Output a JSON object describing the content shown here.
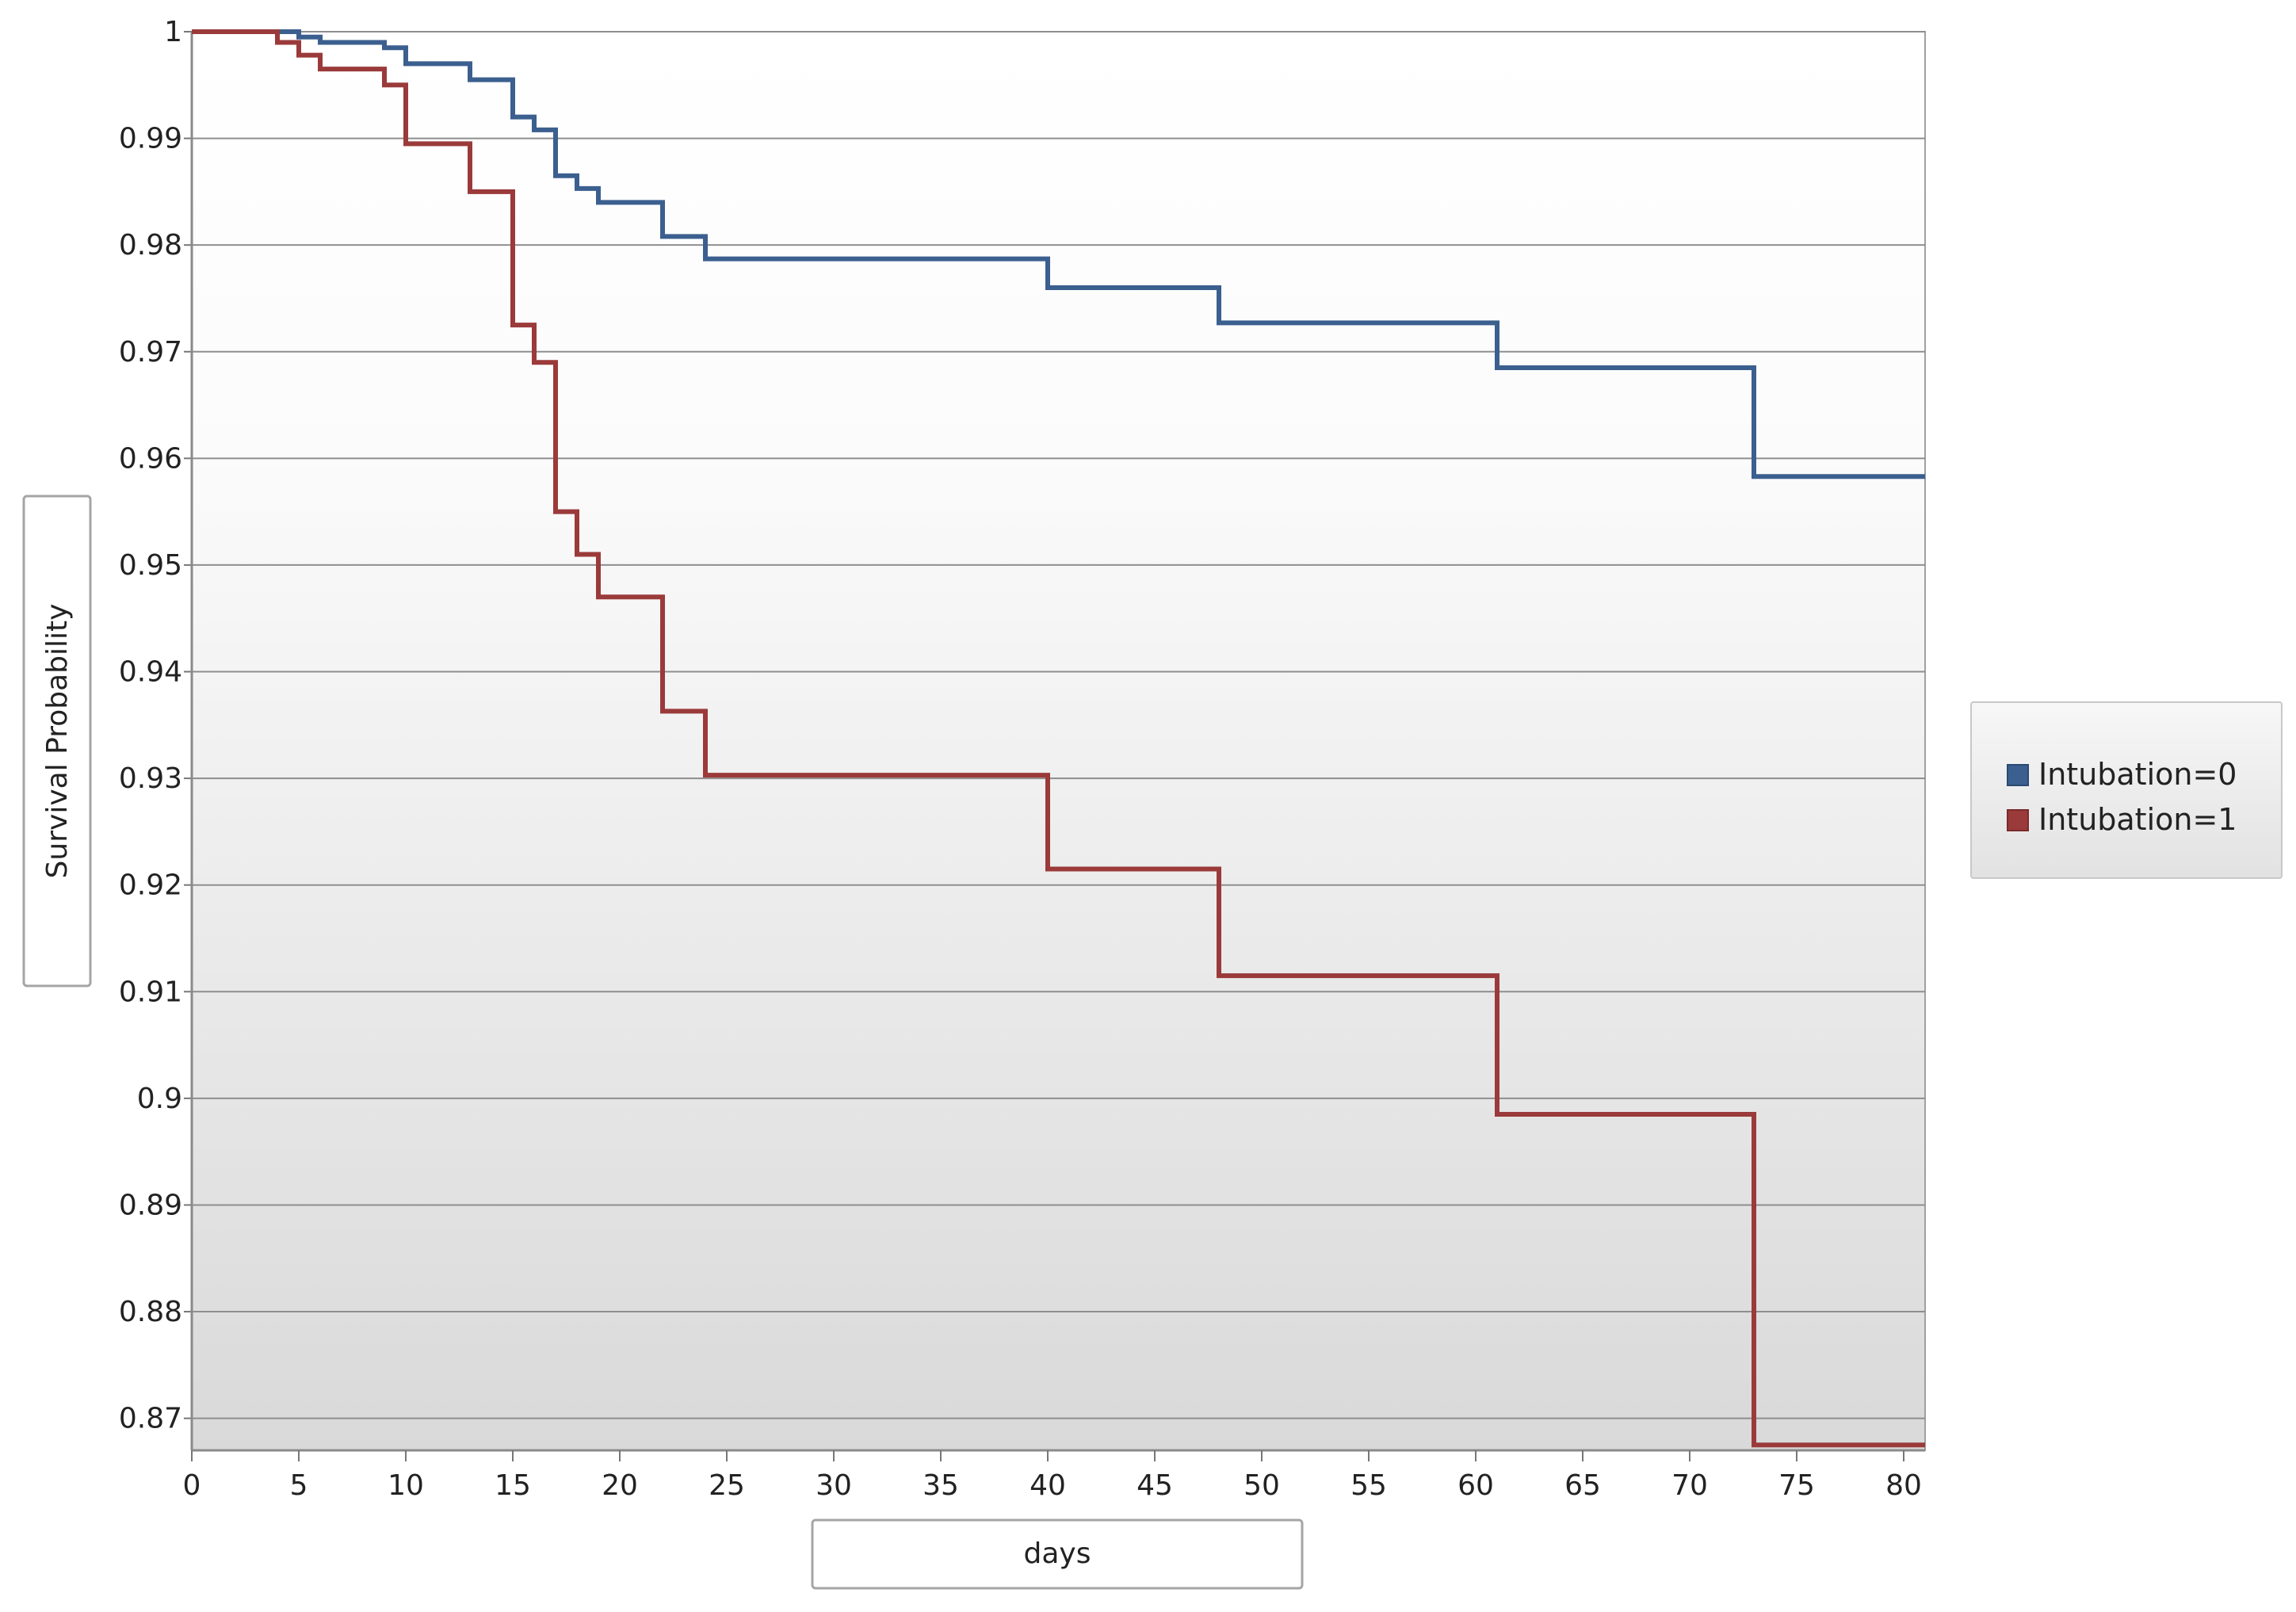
{
  "chart_data": {
    "type": "line",
    "step": true,
    "xlabel": "days",
    "ylabel": "Survival Probability",
    "xlim": [
      0,
      81
    ],
    "ylim": [
      0.867,
      1
    ],
    "x_ticks": [
      0,
      5,
      10,
      15,
      20,
      25,
      30,
      35,
      40,
      45,
      50,
      55,
      60,
      65,
      70,
      75,
      80
    ],
    "y_ticks": [
      1,
      0.99,
      0.98,
      0.97,
      0.96,
      0.95,
      0.94,
      0.93,
      0.92,
      0.91,
      0.9,
      0.89,
      0.88,
      0.87
    ],
    "x_tick_labels": [
      "0",
      "5",
      "10",
      "15",
      "20",
      "25",
      "30",
      "35",
      "40",
      "45",
      "50",
      "55",
      "60",
      "65",
      "70",
      "75",
      "80"
    ],
    "y_tick_labels": [
      "1",
      "0.99",
      "0.98",
      "0.97",
      "0.96",
      "0.95",
      "0.94",
      "0.93",
      "0.92",
      "0.91",
      "0.9",
      "0.89",
      "0.88",
      "0.87"
    ],
    "grid": true,
    "legend_position": "right",
    "series": [
      {
        "name": "Intubation=0",
        "color": "#3b5f8f",
        "x": [
          0,
          5,
          6,
          9,
          10,
          13,
          15,
          16,
          17,
          18,
          19,
          22,
          24,
          40,
          48,
          61,
          73,
          81
        ],
        "y": [
          1.0,
          0.9995,
          0.999,
          0.9985,
          0.997,
          0.9955,
          0.992,
          0.9908,
          0.9865,
          0.9853,
          0.984,
          0.9808,
          0.9787,
          0.976,
          0.9727,
          0.9685,
          0.9583,
          0.9583
        ]
      },
      {
        "name": "Intubation=1",
        "color": "#9b3a3a",
        "x": [
          0,
          4,
          5,
          6,
          9,
          10,
          13,
          15,
          16,
          17,
          18,
          19,
          22,
          24,
          40,
          48,
          61,
          73,
          81
        ],
        "y": [
          1.0,
          0.999,
          0.9978,
          0.9965,
          0.995,
          0.9895,
          0.985,
          0.9725,
          0.969,
          0.955,
          0.951,
          0.947,
          0.9363,
          0.9303,
          0.9215,
          0.9115,
          0.8985,
          0.8675,
          0.8675
        ]
      }
    ]
  }
}
